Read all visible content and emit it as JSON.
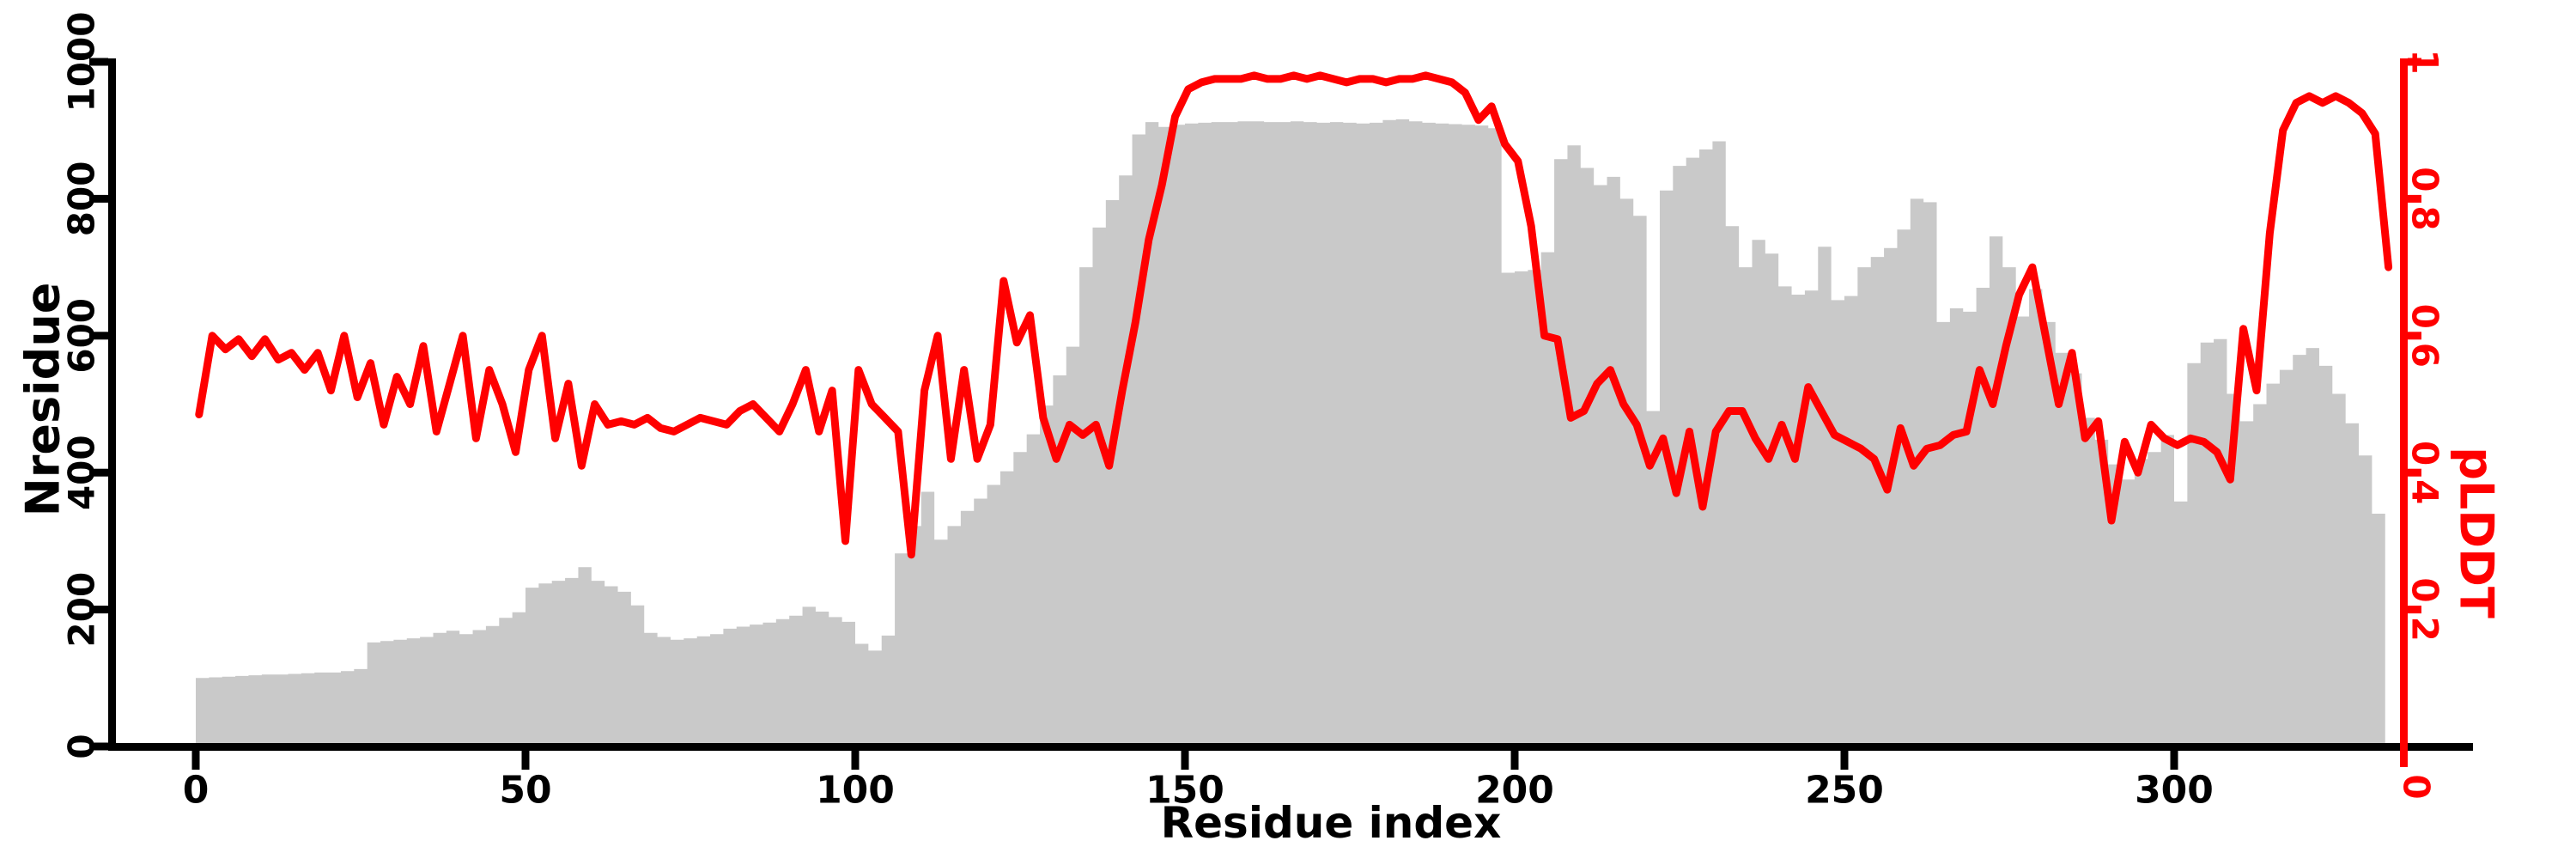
{
  "chart_data": {
    "type": "bar+line",
    "title": "",
    "xlabel": "Residue index",
    "ylabel_left": "Nresidue",
    "ylabel_right": "pLDDT",
    "x_axis": {
      "label": "Residue index",
      "tick_values": [
        0,
        50,
        100,
        150,
        200,
        250,
        300
      ],
      "tick_labels": [
        "0",
        "50",
        "100",
        "150",
        "200",
        "250",
        "300"
      ],
      "range": [
        0,
        332
      ]
    },
    "y_axis_left": {
      "label": "Nresidue",
      "tick_values": [
        0,
        200,
        400,
        600,
        800,
        1000
      ],
      "tick_labels": [
        "0",
        "200",
        "400",
        "600",
        "800",
        "1000"
      ],
      "range": [
        0,
        1000
      ],
      "color": "#000000"
    },
    "y_axis_right": {
      "label": "pLDDT",
      "tick_values": [
        0,
        0.2,
        0.4,
        0.6,
        0.8,
        1
      ],
      "tick_labels": [
        "0",
        "0.2",
        "0.4",
        "0.6",
        "0.8",
        "1"
      ],
      "range": [
        0,
        1
      ],
      "color": "#ff0000"
    },
    "x_start": 0,
    "x_step": 2,
    "series": [
      {
        "name": "Nresidue",
        "type": "bar",
        "color": "#c9c9c9",
        "values": [
          100,
          101,
          102,
          103,
          104,
          105,
          105,
          106,
          107,
          108,
          108,
          110,
          113,
          152,
          154,
          156,
          158,
          160,
          166,
          169,
          164,
          170,
          176,
          188,
          196,
          232,
          238,
          242,
          246,
          262,
          242,
          234,
          226,
          206,
          166,
          160,
          156,
          158,
          161,
          164,
          172,
          175,
          178,
          181,
          186,
          191,
          204,
          197,
          189,
          182,
          150,
          140,
          162,
          282,
          322,
          372,
          302,
          322,
          344,
          362,
          382,
          402,
          430,
          456,
          498,
          542,
          584,
          700,
          758,
          798,
          834,
          894,
          912,
          905,
          908,
          910,
          911,
          912,
          912,
          913,
          913,
          912,
          912,
          913,
          912,
          911,
          912,
          911,
          910,
          911,
          915,
          916,
          913,
          911,
          910,
          909,
          908,
          907,
          903,
          692,
          694,
          696,
          722,
          858,
          878,
          845,
          820,
          832,
          800,
          775,
          490,
          812,
          848,
          860,
          872,
          884,
          760,
          700,
          740,
          720,
          672,
          660,
          666,
          730,
          652,
          658,
          700,
          715,
          728,
          755,
          800,
          795,
          620,
          640,
          635,
          670,
          745,
          700,
          628,
          668,
          620,
          575,
          545,
          480,
          448,
          412,
          390,
          420,
          430,
          455,
          358,
          560,
          590,
          595,
          515,
          475,
          500,
          530,
          550,
          572,
          582,
          556,
          515,
          472,
          425,
          340
        ]
      },
      {
        "name": "pLDDT",
        "type": "line",
        "color": "#ff0000",
        "values": [
          0.485,
          0.6,
          0.58,
          0.595,
          0.57,
          0.595,
          0.565,
          0.575,
          0.55,
          0.575,
          0.52,
          0.6,
          0.51,
          0.56,
          0.47,
          0.54,
          0.5,
          0.585,
          0.46,
          0.53,
          0.6,
          0.45,
          0.55,
          0.5,
          0.43,
          0.55,
          0.6,
          0.45,
          0.53,
          0.41,
          0.5,
          0.47,
          0.475,
          0.47,
          0.48,
          0.465,
          0.46,
          0.47,
          0.48,
          0.475,
          0.47,
          0.49,
          0.5,
          0.48,
          0.46,
          0.5,
          0.55,
          0.46,
          0.52,
          0.3,
          0.55,
          0.5,
          0.48,
          0.46,
          0.28,
          0.52,
          0.6,
          0.42,
          0.55,
          0.42,
          0.47,
          0.68,
          0.59,
          0.63,
          0.48,
          0.42,
          0.47,
          0.455,
          0.47,
          0.41,
          0.52,
          0.62,
          0.74,
          0.82,
          0.92,
          0.96,
          0.97,
          0.975,
          0.975,
          0.975,
          0.98,
          0.975,
          0.975,
          0.98,
          0.975,
          0.98,
          0.975,
          0.97,
          0.975,
          0.975,
          0.97,
          0.975,
          0.975,
          0.98,
          0.975,
          0.97,
          0.955,
          0.915,
          0.935,
          0.88,
          0.855,
          0.76,
          0.6,
          0.595,
          0.48,
          0.49,
          0.53,
          0.55,
          0.5,
          0.47,
          0.41,
          0.45,
          0.37,
          0.46,
          0.35,
          0.46,
          0.49,
          0.49,
          0.45,
          0.42,
          0.47,
          0.42,
          0.525,
          0.49,
          0.455,
          0.445,
          0.435,
          0.42,
          0.375,
          0.465,
          0.41,
          0.435,
          0.44,
          0.455,
          0.46,
          0.55,
          0.5,
          0.585,
          0.66,
          0.7,
          0.6,
          0.5,
          0.575,
          0.45,
          0.475,
          0.33,
          0.445,
          0.4,
          0.47,
          0.45,
          0.44,
          0.45,
          0.445,
          0.43,
          0.39,
          0.61,
          0.52,
          0.75,
          0.9,
          0.94,
          0.95,
          0.94,
          0.95,
          0.94,
          0.925,
          0.895
        ],
        "end_point": {
          "x": 332,
          "value": 0.7
        }
      }
    ],
    "legend": null,
    "grid": false,
    "colors": {
      "line": "#ff0000",
      "right_axis": "#ff0000",
      "bars": "#c9c9c9",
      "left_axis": "#000000",
      "background": "#ffffff"
    }
  }
}
